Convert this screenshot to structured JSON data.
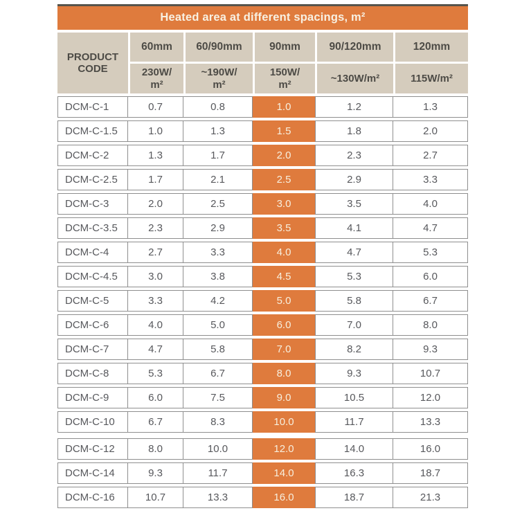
{
  "table": {
    "title": "Heated area at different spacings, m²",
    "product_code_label": "PRODUCT\nCODE",
    "columns": [
      {
        "spacing": "60mm",
        "power": "230W/\nm²",
        "highlight": false
      },
      {
        "spacing": "60/90mm",
        "power": "~190W/\nm²",
        "highlight": false
      },
      {
        "spacing": "90mm",
        "power": "150W/\nm²",
        "highlight": true
      },
      {
        "spacing": "90/120mm",
        "power": "~130W/m²",
        "highlight": false
      },
      {
        "spacing": "120mm",
        "power": "115W/m²",
        "highlight": false
      }
    ],
    "rows": [
      {
        "code": "DCM-C-1",
        "values": [
          "0.7",
          "0.8",
          "1.0",
          "1.2",
          "1.3"
        ]
      },
      {
        "code": "DCM-C-1.5",
        "values": [
          "1.0",
          "1.3",
          "1.5",
          "1.8",
          "2.0"
        ]
      },
      {
        "code": "DCM-C-2",
        "values": [
          "1.3",
          "1.7",
          "2.0",
          "2.3",
          "2.7"
        ]
      },
      {
        "code": "DCM-C-2.5",
        "values": [
          "1.7",
          "2.1",
          "2.5",
          "2.9",
          "3.3"
        ]
      },
      {
        "code": "DCM-C-3",
        "values": [
          "2.0",
          "2.5",
          "3.0",
          "3.5",
          "4.0"
        ]
      },
      {
        "code": "DCM-C-3.5",
        "values": [
          "2.3",
          "2.9",
          "3.5",
          "4.1",
          "4.7"
        ]
      },
      {
        "code": "DCM-C-4",
        "values": [
          "2.7",
          "3.3",
          "4.0",
          "4.7",
          "5.3"
        ]
      },
      {
        "code": "DCM-C-4.5",
        "values": [
          "3.0",
          "3.8",
          "4.5",
          "5.3",
          "6.0"
        ]
      },
      {
        "code": "DCM-C-5",
        "values": [
          "3.3",
          "4.2",
          "5.0",
          "5.8",
          "6.7"
        ]
      },
      {
        "code": "DCM-C-6",
        "values": [
          "4.0",
          "5.0",
          "6.0",
          "7.0",
          "8.0"
        ]
      },
      {
        "code": "DCM-C-7",
        "values": [
          "4.7",
          "5.8",
          "7.0",
          "8.2",
          "9.3"
        ]
      },
      {
        "code": "DCM-C-8",
        "values": [
          "5.3",
          "6.7",
          "8.0",
          "9.3",
          "10.7"
        ]
      },
      {
        "code": "DCM-C-9",
        "values": [
          "6.0",
          "7.5",
          "9.0",
          "10.5",
          "12.0"
        ]
      },
      {
        "code": "DCM-C-10",
        "values": [
          "6.7",
          "8.3",
          "10.0",
          "11.7",
          "13.3"
        ]
      },
      {
        "code": "DCM-C-12",
        "values": [
          "8.0",
          "10.0",
          "12.0",
          "14.0",
          "16.0"
        ],
        "group_break": true
      },
      {
        "code": "DCM-C-14",
        "values": [
          "9.3",
          "11.7",
          "14.0",
          "16.3",
          "18.7"
        ]
      },
      {
        "code": "DCM-C-16",
        "values": [
          "10.7",
          "13.3",
          "16.0",
          "18.7",
          "21.3"
        ]
      }
    ],
    "colors": {
      "accent_orange": "#DF7B3D",
      "header_tan": "#D5CCBD",
      "top_border": "#56534B",
      "cell_border": "#8E8E8E",
      "title_text": "#F8F1E3",
      "header_text": "#4D4B46",
      "body_text": "#57585C",
      "highlight_text": "#F7EFDE",
      "background": "#FFFFFF"
    }
  }
}
